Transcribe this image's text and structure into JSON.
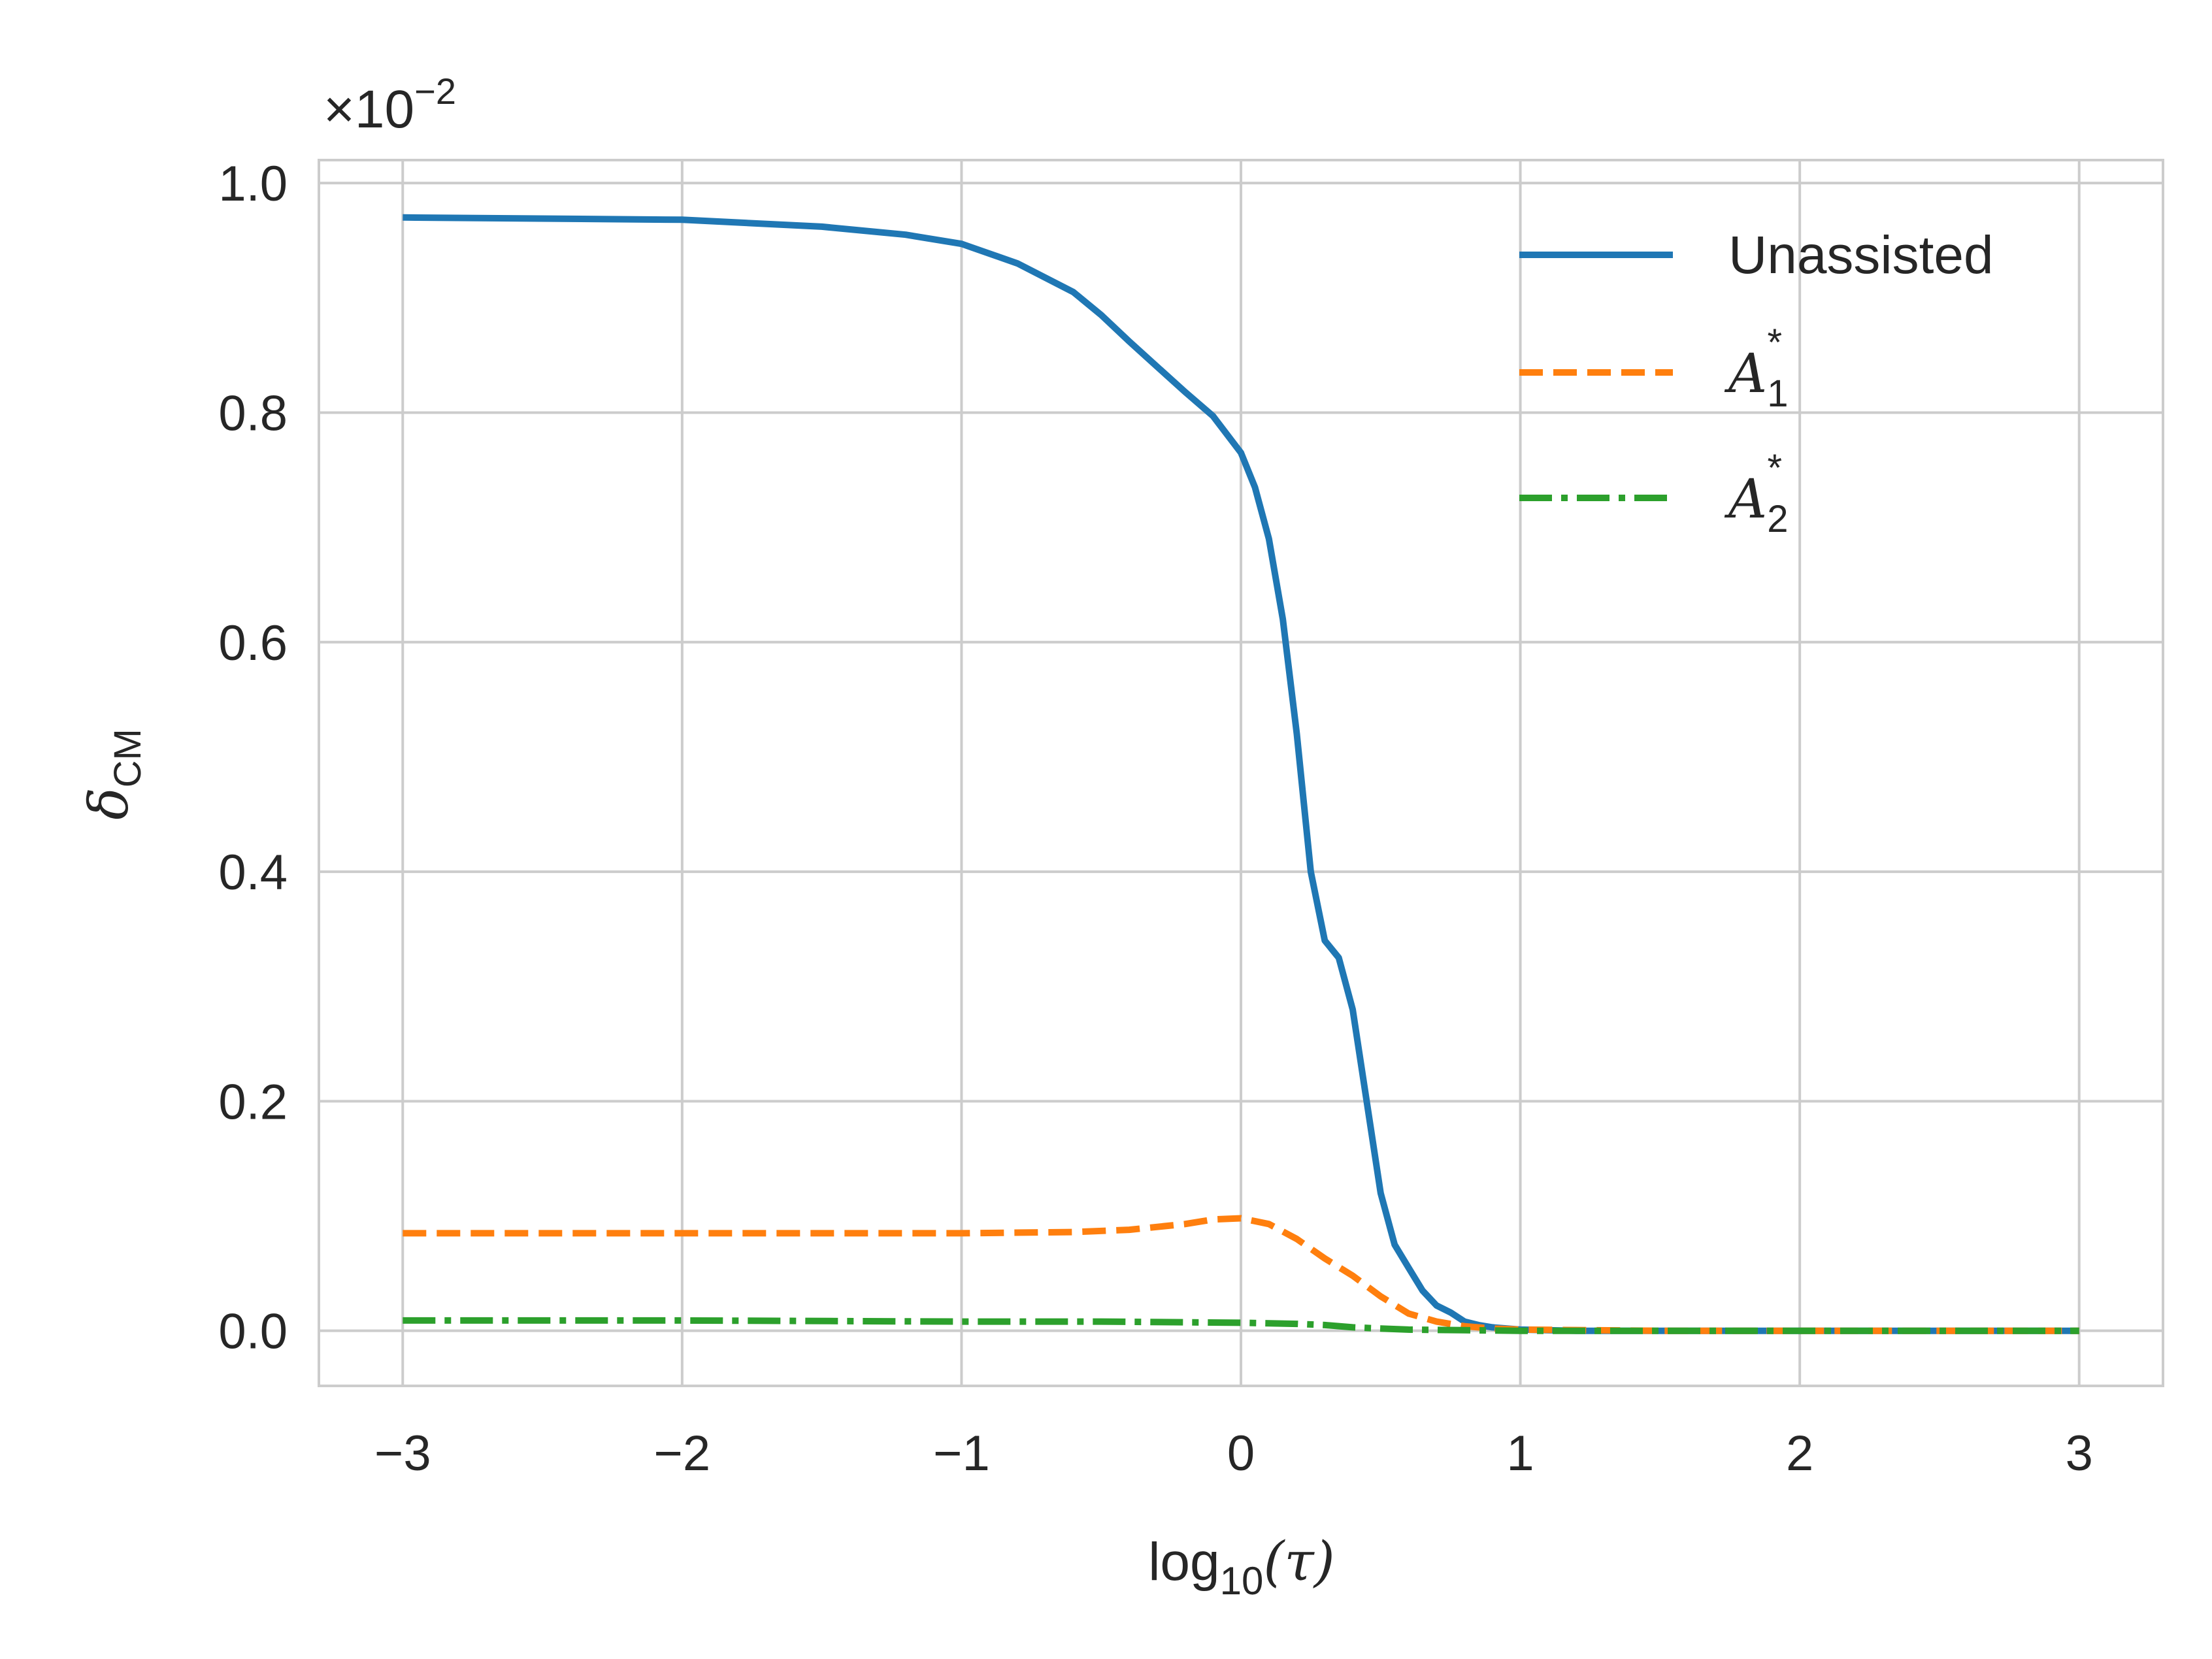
{
  "chart_data": {
    "type": "line",
    "xlabel_base": "log",
    "xlabel_sub": "10",
    "xlabel_arg": "(τ)",
    "ylabel_base": "δ",
    "ylabel_sub": "CM",
    "multiplier_prefix": "×10",
    "multiplier_exp": "−2",
    "xlim": [
      -3.3,
      3.3
    ],
    "ylim": [
      -0.048,
      1.02
    ],
    "xticks": [
      {
        "value": -3,
        "label": "−3"
      },
      {
        "value": -2,
        "label": "−2"
      },
      {
        "value": -1,
        "label": "−1"
      },
      {
        "value": 0,
        "label": "0"
      },
      {
        "value": 1,
        "label": "1"
      },
      {
        "value": 2,
        "label": "2"
      },
      {
        "value": 3,
        "label": "3"
      }
    ],
    "yticks": [
      {
        "value": 0.0,
        "label": "0.0"
      },
      {
        "value": 0.2,
        "label": "0.2"
      },
      {
        "value": 0.4,
        "label": "0.4"
      },
      {
        "value": 0.6,
        "label": "0.6"
      },
      {
        "value": 0.8,
        "label": "0.8"
      },
      {
        "value": 1.0,
        "label": "1.0"
      }
    ],
    "grid": true,
    "legend_position": "top-right",
    "series": [
      {
        "name": "Unassisted",
        "color": "#1f77b4",
        "style": "solid",
        "x": [
          -3.0,
          -2.0,
          -1.5,
          -1.2,
          -1.0,
          -0.8,
          -0.6,
          -0.5,
          -0.4,
          -0.3,
          -0.2,
          -0.1,
          0.0,
          0.05,
          0.1,
          0.15,
          0.2,
          0.25,
          0.3,
          0.35,
          0.4,
          0.45,
          0.5,
          0.55,
          0.6,
          0.65,
          0.7,
          0.75,
          0.8,
          0.85,
          0.9,
          1.0,
          1.2,
          1.5,
          2.0,
          2.5,
          3.0
        ],
        "y": [
          0.97,
          0.968,
          0.962,
          0.955,
          0.947,
          0.93,
          0.905,
          0.885,
          0.862,
          0.84,
          0.818,
          0.797,
          0.765,
          0.735,
          0.69,
          0.62,
          0.52,
          0.4,
          0.34,
          0.325,
          0.28,
          0.2,
          0.12,
          0.075,
          0.055,
          0.035,
          0.022,
          0.016,
          0.008,
          0.005,
          0.003,
          0.001,
          0.0,
          0.0,
          0.0,
          0.0,
          0.0
        ]
      },
      {
        "name": "A",
        "name_sub": "1",
        "name_sup": "*",
        "color": "#ff7f0e",
        "style": "dashed",
        "x": [
          -3.0,
          -2.0,
          -1.0,
          -0.6,
          -0.4,
          -0.2,
          -0.1,
          0.0,
          0.1,
          0.2,
          0.3,
          0.4,
          0.5,
          0.6,
          0.7,
          0.8,
          0.9,
          1.0,
          1.5,
          2.0,
          3.0
        ],
        "y": [
          0.085,
          0.085,
          0.085,
          0.086,
          0.088,
          0.093,
          0.097,
          0.098,
          0.093,
          0.08,
          0.063,
          0.048,
          0.03,
          0.015,
          0.008,
          0.004,
          0.002,
          0.001,
          0.0,
          0.0,
          0.0
        ]
      },
      {
        "name": "A",
        "name_sub": "2",
        "name_sup": "*",
        "color": "#2ca02c",
        "style": "dashdot",
        "x": [
          -3.0,
          -2.0,
          -1.0,
          -0.5,
          0.0,
          0.2,
          0.3,
          0.4,
          0.5,
          0.6,
          0.8,
          1.0,
          1.5,
          2.0,
          3.0
        ],
        "y": [
          0.009,
          0.009,
          0.008,
          0.008,
          0.007,
          0.006,
          0.005,
          0.003,
          0.002,
          0.001,
          0.0005,
          0.0,
          0.0,
          0.0,
          0.0
        ]
      }
    ]
  }
}
